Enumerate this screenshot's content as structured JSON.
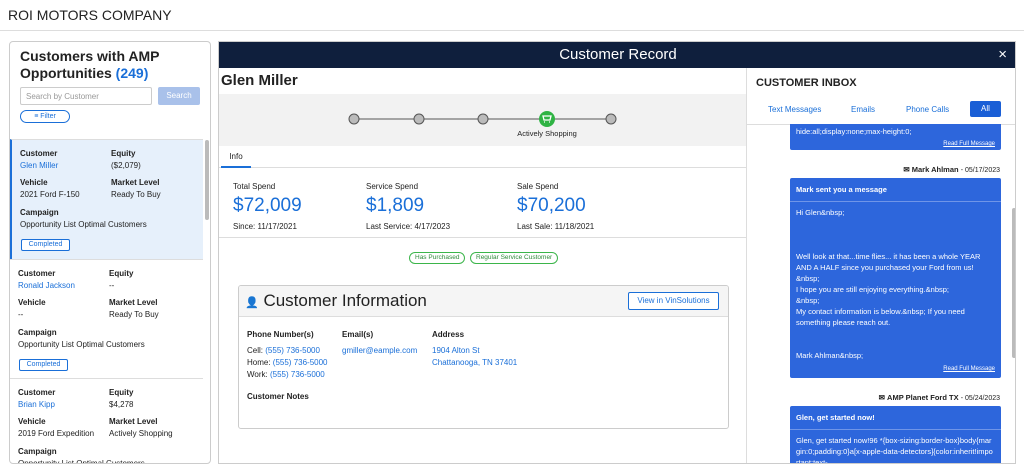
{
  "header": {
    "title": "ROI MOTORS COMPANY"
  },
  "sidebar": {
    "title": "Customers with AMP Opportunities",
    "count": "(249)",
    "search_placeholder": "Search by Customer",
    "search_button": "Search",
    "filter_button": "Filter",
    "labels": {
      "customer": "Customer",
      "equity": "Equity",
      "vehicle": "Vehicle",
      "market_level": "Market Level",
      "campaign": "Campaign"
    },
    "customers": [
      {
        "customer": "Glen Miller",
        "equity": "($2,079)",
        "vehicle": "2021 Ford F-150",
        "market_level": "Ready To Buy",
        "campaign": "Opportunity List Optimal Customers",
        "status": "Completed"
      },
      {
        "customer": "Ronald Jackson",
        "equity": "--",
        "vehicle": "--",
        "market_level": "Ready To Buy",
        "campaign": "Opportunity List Optimal Customers",
        "status": "Completed"
      },
      {
        "customer": "Brian Kipp",
        "equity": "$4,278",
        "vehicle": "2019 Ford Expedition",
        "market_level": "Actively Shopping",
        "campaign": "Opportunity List Optimal Customers"
      }
    ]
  },
  "modal": {
    "title": "Customer Record",
    "close": "×",
    "customer_name": "Glen Miller",
    "progress": {
      "active_label": "Actively Shopping"
    },
    "tab": "Info",
    "stats": [
      {
        "label": "Total Spend",
        "value": "$72,009",
        "sub": "Since: 11/17/2021"
      },
      {
        "label": "Service Spend",
        "value": "$1,809",
        "sub": "Last Service: 4/17/2023"
      },
      {
        "label": "Sale Spend",
        "value": "$70,200",
        "sub": "Last Sale: 11/18/2021"
      }
    ],
    "badges": [
      "Has Purchased",
      "Regular Service Customer"
    ],
    "customer_info": {
      "title": "Customer Information",
      "button": "View in VinSolutions",
      "phones_heading": "Phone Number(s)",
      "phones": [
        {
          "label": "Cell:",
          "number": "(555) 736-5000"
        },
        {
          "label": "Home:",
          "number": "(555) 736-5000"
        },
        {
          "label": "Work:",
          "number": "(555) 736-5000"
        }
      ],
      "emails_heading": "Email(s)",
      "email": "gmiller@eample.com",
      "address_heading": "Address",
      "address_lines": [
        "1904 Alton St",
        "Chattanooga, TN 37401"
      ],
      "notes_heading": "Customer Notes"
    },
    "inbox": {
      "title": "CUSTOMER INBOX",
      "tabs": [
        "Text Messages",
        "Emails",
        "Phone Calls",
        "All"
      ],
      "read_full": "Read Full Message",
      "messages": [
        {
          "body": [
            "hide:all;display:none;max-height:0;"
          ]
        },
        {
          "sender": "Mark Ahlman",
          "date": "- 05/17/2023",
          "subject": "Mark sent you a message",
          "body": [
            "Hi Glen&nbsp;",
            "Well look at that...time flies... it has been a whole YEAR AND A HALF since you purchased your Ford from us!",
            "&nbsp;",
            "I hope you are still enjoying everything.&nbsp;",
            "&nbsp;",
            "My contact information is below.&nbsp; If you need something please reach out.",
            "Mark Ahlman&nbsp;"
          ]
        },
        {
          "sender": "AMP  Planet Ford  TX",
          "date": "- 05/24/2023",
          "subject": "Glen, get started now!",
          "body": [
            "Glen, get started now!96 *{box-sizing:border-box}body{margin:0;padding:0}a[x-apple-data-detectors]{color:inherit!important;text-"
          ]
        }
      ]
    }
  }
}
